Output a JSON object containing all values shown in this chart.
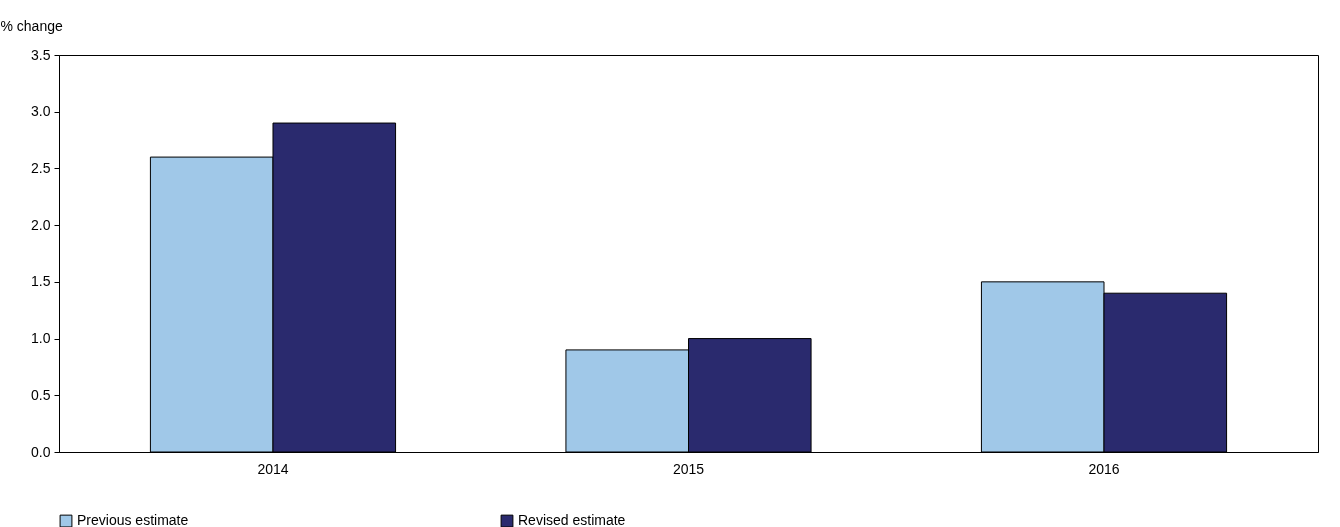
{
  "chart_data": {
    "type": "bar",
    "ylabel": "% change",
    "categories": [
      "2014",
      "2015",
      "2016"
    ],
    "series": [
      {
        "name": "Previous estimate",
        "color": "#a0c8e8",
        "values": [
          2.6,
          0.9,
          1.5
        ]
      },
      {
        "name": "Revised estimate",
        "color": "#2a2a6e",
        "values": [
          2.9,
          1.0,
          1.4
        ]
      }
    ],
    "ylim": [
      0,
      3.5
    ],
    "yticks": [
      {
        "value": 0,
        "label": "0.0"
      },
      {
        "value": 0.5,
        "label": "0.5"
      },
      {
        "value": 1,
        "label": "1.0"
      },
      {
        "value": 1.5,
        "label": "1.5"
      },
      {
        "value": 2,
        "label": "2.0"
      },
      {
        "value": 2.5,
        "label": "2.5"
      },
      {
        "value": 3,
        "label": "3.0"
      },
      {
        "value": 3.5,
        "label": "3.5"
      }
    ],
    "grid": false,
    "legend": "bottom"
  }
}
